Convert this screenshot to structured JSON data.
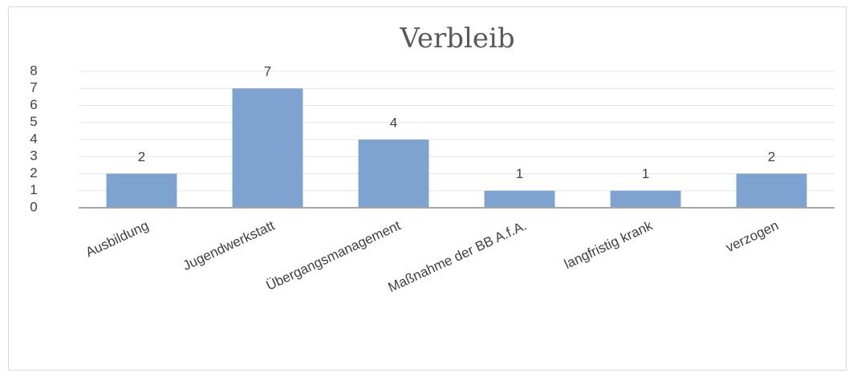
{
  "chart_data": {
    "type": "bar",
    "title": "Verbleib",
    "categories": [
      "Ausbildung",
      "Jugendwerkstatt",
      "Übergangsmanagement",
      "Maßnahme der BB A.f.A.",
      "langfristig krank",
      "verzogen"
    ],
    "values": [
      2,
      7,
      4,
      1,
      1,
      2
    ],
    "color": "#7fa3d0",
    "ylim": [
      0,
      8
    ],
    "yticks": [
      0,
      1,
      2,
      3,
      4,
      5,
      6,
      7,
      8
    ],
    "grid": true
  }
}
